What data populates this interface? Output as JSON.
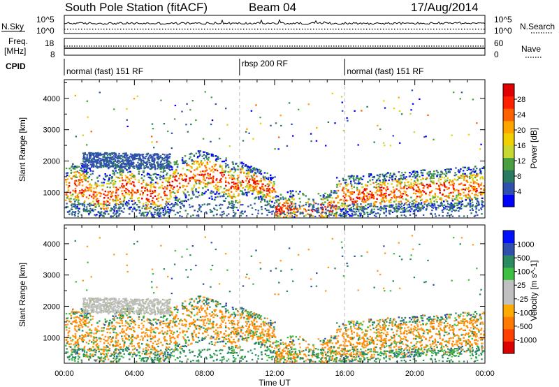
{
  "header": {
    "title": "South Pole Station (fitACF)",
    "beam": "Beam 04",
    "date": "17/Aug/2014"
  },
  "strip": {
    "nsky_label": "N.Sky",
    "nsearch_label": "N.Search",
    "noise_tick_hi": "10^5",
    "noise_tick_lo": "10^0",
    "freq_label_1": "Freq.",
    "freq_label_2": "[MHz]",
    "freq_tick_hi": "18",
    "freq_tick_lo": "8",
    "nave_label": "Nave",
    "nave_tick_hi": "60",
    "nave_tick_lo": "0",
    "cpid_label": "CPID",
    "modes": [
      {
        "label": "normal (fast) 151 RF",
        "start": 0.0,
        "end": 10.0
      },
      {
        "label": "rbsp 200 RF",
        "start": 10.0,
        "end": 16.0
      },
      {
        "label": "normal (fast) 151 RF",
        "start": 16.0,
        "end": 24.0
      }
    ]
  },
  "colors": {
    "power_scale": [
      "#0000ff",
      "#3050b0",
      "#2a7a60",
      "#4aa040",
      "#c8d830",
      "#f0d000",
      "#ffa500",
      "#ff6000",
      "#ff2000",
      "#e00000"
    ],
    "velocity_scale": [
      "#dd0000",
      "#ff4000",
      "#ff7a00",
      "#ffaa00",
      "#c0c0c0",
      "#c0c0c0",
      "#40c040",
      "#2a8a60",
      "#3050b0",
      "#0010ff"
    ]
  },
  "chart_data": [
    {
      "type": "heatmap",
      "name": "power-panel",
      "xlabel": "",
      "ylabel": "Slant Range [km]",
      "xlim": [
        0,
        24
      ],
      "ylim": [
        180,
        4600
      ],
      "yticks": [
        1000,
        2000,
        3000,
        4000
      ],
      "ytick_labels": [
        "1000",
        "2000",
        "3000",
        "4000"
      ],
      "colorbar": {
        "label": "Power [dB]",
        "range": [
          0,
          32
        ],
        "ticks": [
          4,
          8,
          12,
          16,
          20,
          24,
          28
        ],
        "tick_labels": [
          "4",
          "8",
          "12",
          "16",
          "20",
          "24",
          "28"
        ]
      },
      "mode_boundaries_hours": [
        10.0,
        16.0
      ]
    },
    {
      "type": "heatmap",
      "name": "velocity-panel",
      "xlabel": "Time UT",
      "ylabel": "Slant Range [km]",
      "xlim": [
        0,
        24
      ],
      "ylim": [
        180,
        4600
      ],
      "xticks": [
        0,
        4,
        8,
        12,
        16,
        20,
        24
      ],
      "xtick_labels": [
        "00:00",
        "04:00",
        "08:00",
        "12:00",
        "16:00",
        "20:00",
        "00:00"
      ],
      "yticks": [
        1000,
        2000,
        3000,
        4000
      ],
      "ytick_labels": [
        "1000",
        "2000",
        "3000",
        "4000"
      ],
      "colorbar": {
        "label": "Velocity [m s^-1]",
        "tick_labels": [
          "-1000",
          "-500",
          "-100",
          "-25",
          "25",
          "100",
          "500",
          "1000"
        ]
      },
      "mode_boundaries_hours": [
        10.0,
        16.0
      ]
    }
  ]
}
